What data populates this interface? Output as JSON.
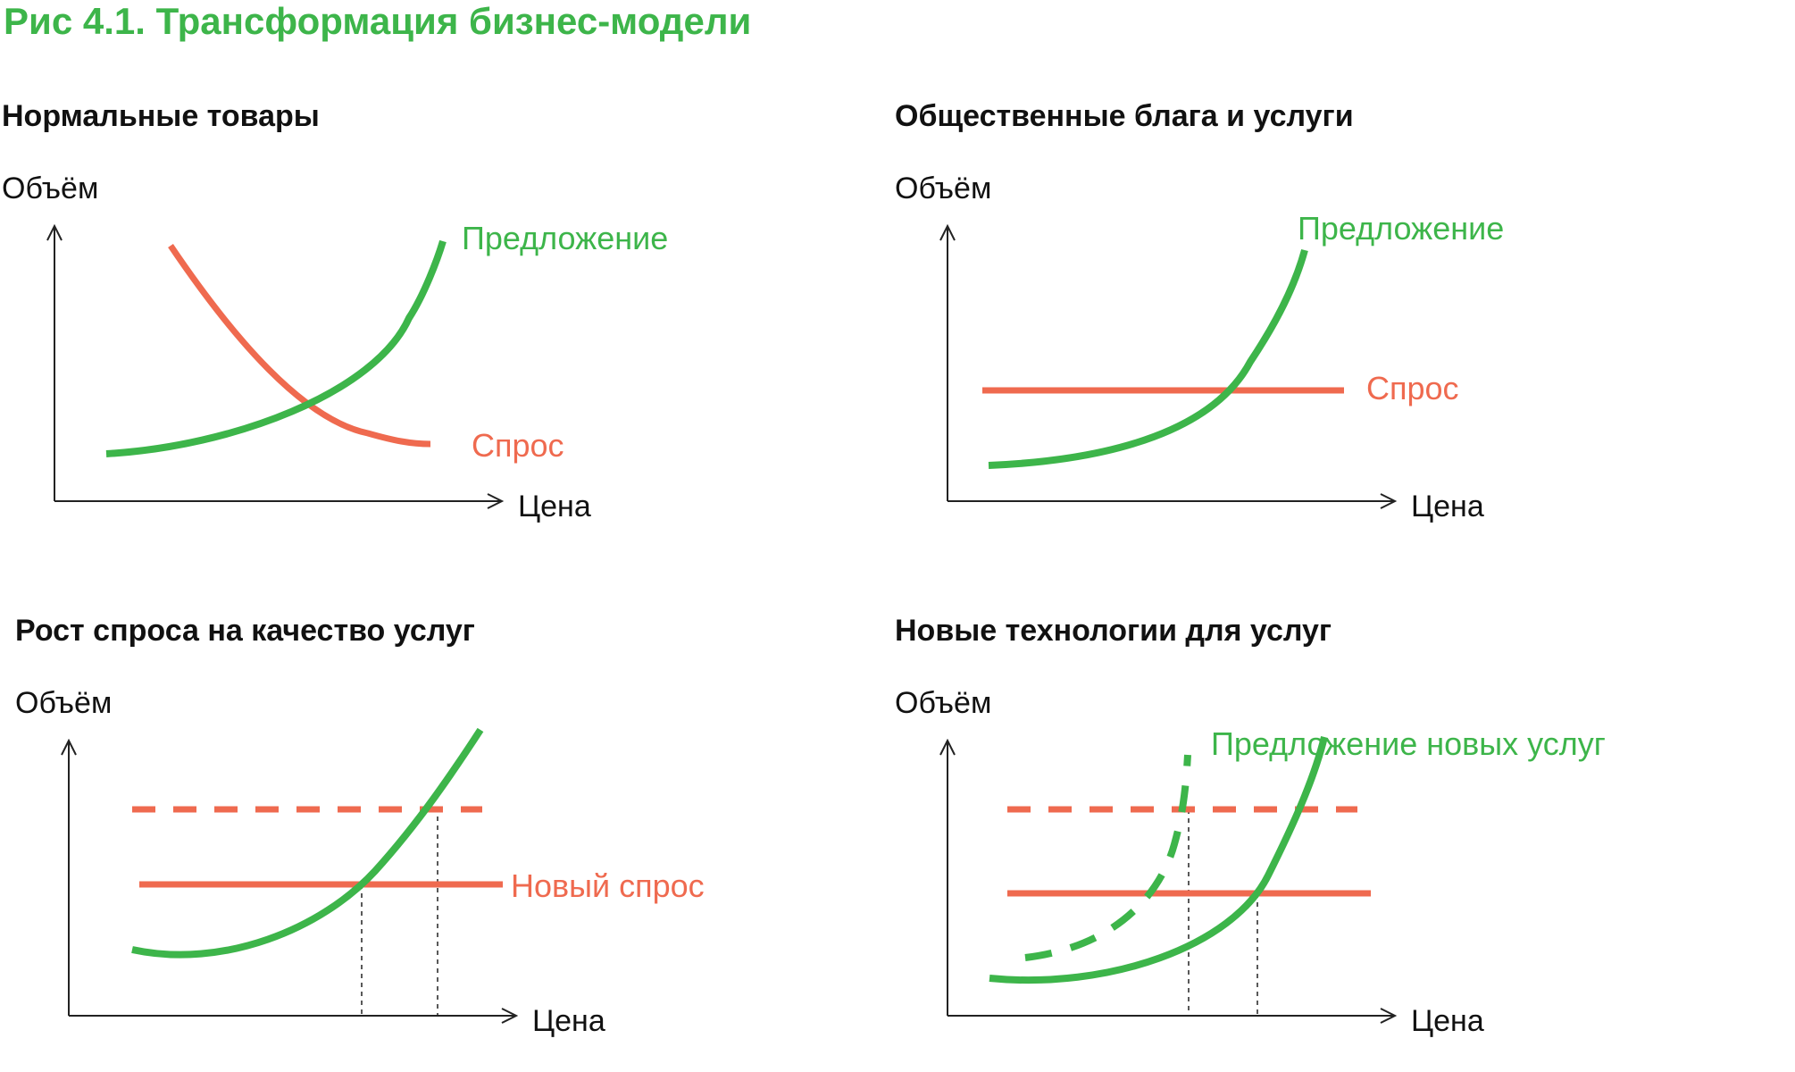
{
  "figure": {
    "title": "Рис 4.1. Трансформация бизнес-модели",
    "colors": {
      "title": "#3db54a",
      "supply": "#3db54a",
      "demand": "#ef6a4f",
      "axis": "#222222"
    }
  },
  "panels": {
    "normal_goods": {
      "title": "Нормальные товары",
      "y_axis": "Объём",
      "x_axis": "Цена",
      "supply_label": "Предложение",
      "demand_label": "Спрос"
    },
    "public_goods": {
      "title": "Общественные блага и услуги",
      "y_axis": "Объём",
      "x_axis": "Цена",
      "supply_label": "Предложение",
      "demand_label": "Спрос"
    },
    "quality_demand": {
      "title": "Рост спроса на качество услуг",
      "y_axis": "Объём",
      "x_axis": "Цена",
      "demand_label": "Новый спрос"
    },
    "new_tech": {
      "title": "Новые технологии для услуг",
      "y_axis": "Объём",
      "x_axis": "Цена",
      "supply_label": "Предложение новых услуг"
    }
  }
}
